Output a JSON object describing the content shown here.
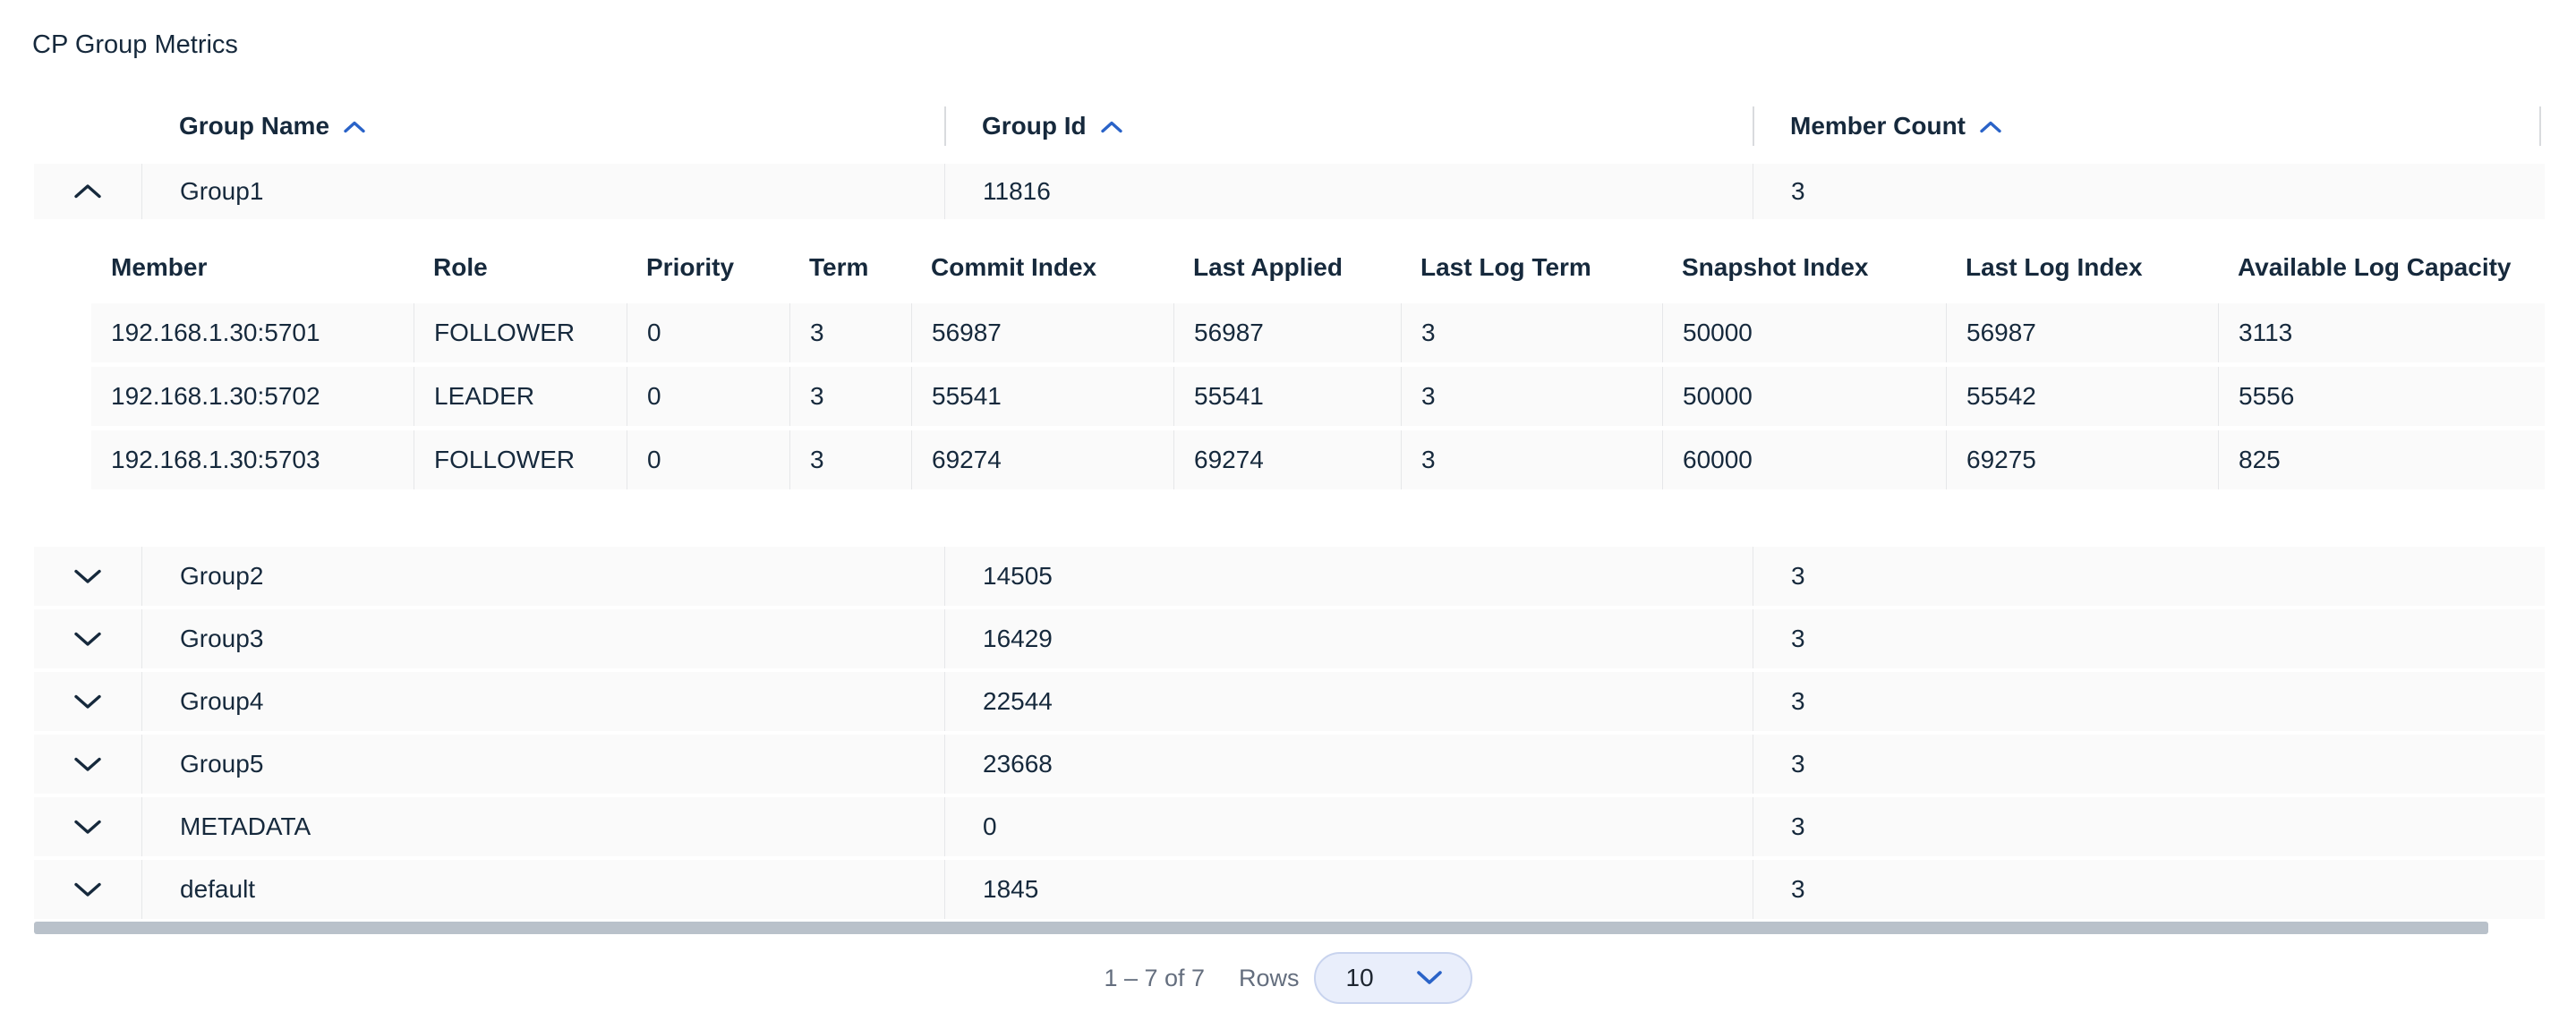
{
  "page": {
    "title": "CP Group Metrics"
  },
  "table": {
    "columns": [
      {
        "label": "Group Name",
        "sort": "asc",
        "sort_icon": "chevron-up-icon"
      },
      {
        "label": "Group Id",
        "sort": "asc",
        "sort_icon": "chevron-up-icon"
      },
      {
        "label": "Member Count",
        "sort": "asc",
        "sort_icon": "chevron-up-icon"
      }
    ],
    "rows": [
      {
        "name": "Group1",
        "id": "11816",
        "member_count": "3",
        "expanded": true
      },
      {
        "name": "Group2",
        "id": "14505",
        "member_count": "3",
        "expanded": false
      },
      {
        "name": "Group3",
        "id": "16429",
        "member_count": "3",
        "expanded": false
      },
      {
        "name": "Group4",
        "id": "22544",
        "member_count": "3",
        "expanded": false
      },
      {
        "name": "Group5",
        "id": "23668",
        "member_count": "3",
        "expanded": false
      },
      {
        "name": "METADATA",
        "id": "0",
        "member_count": "3",
        "expanded": false
      },
      {
        "name": "default",
        "id": "1845",
        "member_count": "3",
        "expanded": false
      }
    ],
    "detail": {
      "columns": [
        "Member",
        "Role",
        "Priority",
        "Term",
        "Commit Index",
        "Last Applied",
        "Last Log Term",
        "Snapshot Index",
        "Last Log Index",
        "Available Log Capacity"
      ],
      "rows": [
        [
          "192.168.1.30:5701",
          "FOLLOWER",
          "0",
          "3",
          "56987",
          "56987",
          "3",
          "50000",
          "56987",
          "3113"
        ],
        [
          "192.168.1.30:5702",
          "LEADER",
          "0",
          "3",
          "55541",
          "55541",
          "3",
          "50000",
          "55542",
          "5556"
        ],
        [
          "192.168.1.30:5703",
          "FOLLOWER",
          "0",
          "3",
          "69274",
          "69274",
          "3",
          "60000",
          "69275",
          "825"
        ]
      ]
    }
  },
  "pagination": {
    "range": "1 – 7 of 7",
    "rows_label": "Rows",
    "page_size": "10",
    "select_icon": "chevron-down-icon"
  },
  "icons": {
    "expanded_row": "chevron-up-icon",
    "collapsed_row": "chevron-down-icon"
  },
  "colors": {
    "accent": "#2a63c8",
    "text": "#16293c",
    "muted": "#646e7e",
    "row_bg": "#fafafa",
    "divider": "#e6e7e9",
    "header_divider": "#d9dbde",
    "scrollbar": "#b9c1ca",
    "select_bg": "#e9eefb",
    "select_border": "#c8d3ee"
  }
}
